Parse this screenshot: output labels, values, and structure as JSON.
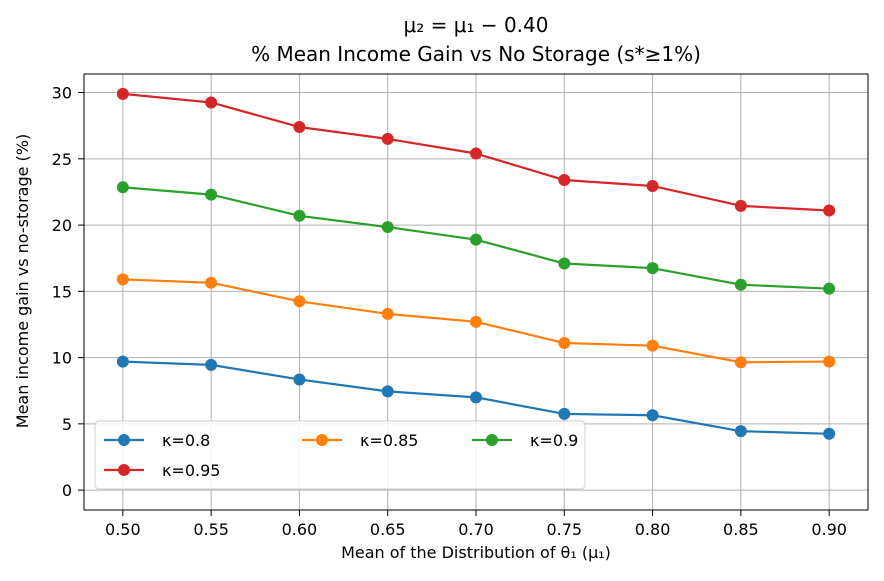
{
  "chart_data": {
    "type": "line",
    "title": "μ₂ = μ₁ − 0.40",
    "subtitle": "% Mean Income Gain vs No Storage (s*≥1%)",
    "xlabel": "Mean of the Distribution of θ₁ (μ₁)",
    "ylabel": "Mean income gain vs no-storage (%)",
    "x": [
      0.5,
      0.55,
      0.6,
      0.65,
      0.7,
      0.75,
      0.8,
      0.85,
      0.9
    ],
    "x_tick_labels": [
      "0.50",
      "0.55",
      "0.60",
      "0.65",
      "0.70",
      "0.75",
      "0.80",
      "0.85",
      "0.90"
    ],
    "y_ticks": [
      0,
      5,
      10,
      15,
      20,
      25,
      30
    ],
    "y_tick_labels": [
      "0",
      "5",
      "10",
      "15",
      "20",
      "25",
      "30"
    ],
    "xlim": [
      0.478,
      0.922
    ],
    "ylim": [
      -1.5,
      31.4
    ],
    "grid": true,
    "legend_position": "lower-left",
    "series": [
      {
        "name": "κ=0.8",
        "color": "#1f77b4",
        "values": [
          9.7,
          9.45,
          8.35,
          7.45,
          7.0,
          5.75,
          5.65,
          4.45,
          4.25
        ]
      },
      {
        "name": "κ=0.85",
        "color": "#ff7f0e",
        "values": [
          15.9,
          15.65,
          14.25,
          13.3,
          12.7,
          11.1,
          10.9,
          9.65,
          9.7
        ]
      },
      {
        "name": "κ=0.9",
        "color": "#2ca02c",
        "values": [
          22.85,
          22.3,
          20.7,
          19.85,
          18.9,
          17.1,
          16.75,
          15.5,
          15.2
        ]
      },
      {
        "name": "κ=0.95",
        "color": "#d62728",
        "values": [
          29.9,
          29.25,
          27.4,
          26.5,
          25.4,
          23.4,
          22.95,
          21.45,
          21.1
        ]
      }
    ]
  }
}
